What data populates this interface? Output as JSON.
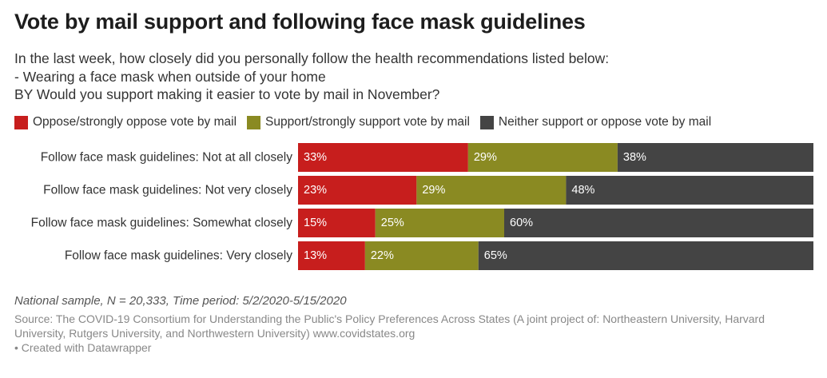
{
  "title": "Vote by mail support and following face mask guidelines",
  "subtitle_lines": [
    "In the last week, how closely did you personally follow the health recommendations listed below:",
    "- Wearing a face mask when outside of your home",
    "BY Would you support making it easier to vote by mail in November?"
  ],
  "notes": "National sample, N = 20,333, Time period: 5/2/2020-5/15/2020",
  "source": "Source: The COVID-19 Consortium for Understanding the Public's Policy Preferences Across States (A joint project of: Northeastern University, Harvard University, Rutgers University, and Northwestern University) www.covidstates.org",
  "credit": "• Created with Datawrapper",
  "chart_data": {
    "type": "bar",
    "orientation": "horizontal",
    "stacked": true,
    "unit": "%",
    "xlim": [
      0,
      100
    ],
    "legend_position": "top",
    "categories": [
      "Follow face mask guidelines: Not at all closely",
      "Follow face mask guidelines: Not very closely",
      "Follow face mask guidelines: Somewhat closely",
      "Follow face mask guidelines: Very closely"
    ],
    "series": [
      {
        "name": "Oppose/strongly oppose vote by mail",
        "color": "#c71e1d",
        "values": [
          33,
          23,
          15,
          13
        ]
      },
      {
        "name": "Support/strongly support vote by mail",
        "color": "#8a8a22",
        "values": [
          29,
          29,
          25,
          22
        ]
      },
      {
        "name": "Neither support or oppose vote by mail",
        "color": "#444444",
        "values": [
          38,
          48,
          60,
          65
        ]
      }
    ]
  }
}
